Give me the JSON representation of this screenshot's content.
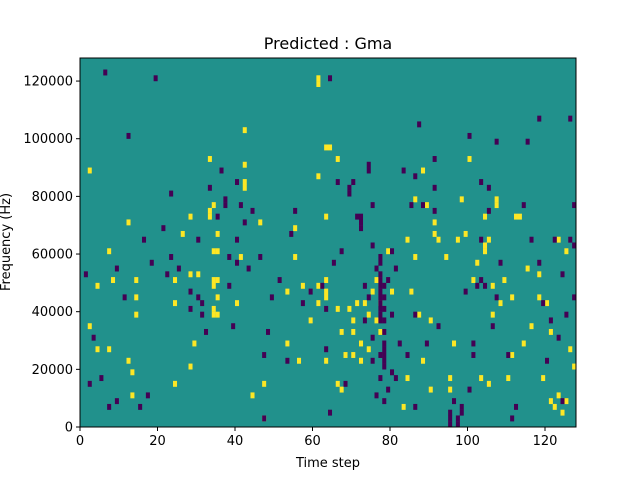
{
  "chart_data": {
    "type": "heatmap",
    "title": "Predicted : Gma",
    "xlabel": "Time step",
    "ylabel": "Frequency (Hz)",
    "xlim": [
      0,
      128
    ],
    "ylim": [
      0,
      128000
    ],
    "xticks": [
      0,
      20,
      40,
      60,
      80,
      100,
      120
    ],
    "yticks": [
      0,
      20000,
      40000,
      60000,
      80000,
      100000,
      120000
    ],
    "grid": false,
    "colormap": "viridis",
    "colors": {
      "background": "#21918c",
      "high": "#fde725",
      "low": "#440154"
    },
    "rows": 64,
    "cols": 128,
    "high_cells": [
      [
        2,
        17
      ],
      [
        2,
        44
      ],
      [
        4,
        13
      ],
      [
        4,
        24
      ],
      [
        7,
        13
      ],
      [
        7,
        30
      ],
      [
        8,
        25
      ],
      [
        12,
        11
      ],
      [
        12,
        35
      ],
      [
        13,
        5
      ],
      [
        13,
        9
      ],
      [
        14,
        19
      ],
      [
        14,
        22
      ],
      [
        14,
        25
      ],
      [
        24,
        7
      ],
      [
        24,
        21
      ],
      [
        24,
        25
      ],
      [
        26,
        33
      ],
      [
        28,
        10
      ],
      [
        28,
        26
      ],
      [
        28,
        36
      ],
      [
        29,
        14
      ],
      [
        30,
        26
      ],
      [
        33,
        36
      ],
      [
        33,
        37
      ],
      [
        33,
        46
      ],
      [
        34,
        19
      ],
      [
        34,
        20
      ],
      [
        34,
        24
      ],
      [
        34,
        25
      ],
      [
        34,
        30
      ],
      [
        34,
        38
      ],
      [
        35,
        19
      ],
      [
        35,
        22
      ],
      [
        35,
        25
      ],
      [
        35,
        30
      ],
      [
        35,
        33
      ],
      [
        40,
        21
      ],
      [
        41,
        29
      ],
      [
        42,
        41
      ],
      [
        42,
        42
      ],
      [
        42,
        45
      ],
      [
        42,
        51
      ],
      [
        44,
        5
      ],
      [
        46,
        35
      ],
      [
        47,
        1
      ],
      [
        47,
        7
      ],
      [
        53,
        14
      ],
      [
        53,
        23
      ],
      [
        55,
        29
      ],
      [
        55,
        34
      ],
      [
        56,
        11
      ],
      [
        57,
        24
      ],
      [
        59,
        18
      ],
      [
        61,
        21
      ],
      [
        61,
        24
      ],
      [
        61,
        43
      ],
      [
        61,
        59
      ],
      [
        61,
        60
      ],
      [
        63,
        11
      ],
      [
        63,
        22
      ],
      [
        63,
        23
      ],
      [
        63,
        25
      ],
      [
        63,
        36
      ],
      [
        63,
        48
      ],
      [
        64,
        48
      ],
      [
        66,
        7
      ],
      [
        66,
        20
      ],
      [
        66,
        46
      ],
      [
        67,
        6
      ],
      [
        67,
        16
      ],
      [
        68,
        12
      ],
      [
        69,
        20
      ],
      [
        70,
        12
      ],
      [
        70,
        16
      ],
      [
        70,
        18
      ],
      [
        71,
        21
      ],
      [
        72,
        11
      ],
      [
        72,
        14
      ],
      [
        73,
        21
      ],
      [
        74,
        13
      ],
      [
        74,
        19
      ],
      [
        75,
        23
      ],
      [
        76,
        18
      ],
      [
        76,
        25
      ],
      [
        77,
        16
      ],
      [
        77,
        21
      ],
      [
        79,
        30
      ],
      [
        80,
        23
      ],
      [
        83,
        3
      ],
      [
        84,
        8
      ],
      [
        84,
        32
      ],
      [
        85,
        23
      ],
      [
        86,
        29
      ],
      [
        86,
        39
      ],
      [
        87,
        19
      ],
      [
        88,
        11
      ],
      [
        88,
        44
      ],
      [
        89,
        38
      ],
      [
        90,
        6
      ],
      [
        90,
        18
      ],
      [
        91,
        33
      ],
      [
        91,
        35
      ],
      [
        92,
        32
      ],
      [
        94,
        29
      ],
      [
        95,
        6
      ],
      [
        95,
        8
      ],
      [
        96,
        14
      ],
      [
        97,
        32
      ],
      [
        98,
        39
      ],
      [
        99,
        33
      ],
      [
        100,
        46
      ],
      [
        101,
        25
      ],
      [
        102,
        28
      ],
      [
        103,
        8
      ],
      [
        104,
        30
      ],
      [
        104,
        31
      ],
      [
        104,
        36
      ],
      [
        105,
        7
      ],
      [
        105,
        32
      ],
      [
        106,
        19
      ],
      [
        106,
        24
      ],
      [
        107,
        38
      ],
      [
        107,
        39
      ],
      [
        108,
        21
      ],
      [
        109,
        25
      ],
      [
        110,
        8
      ],
      [
        111,
        12
      ],
      [
        111,
        22
      ],
      [
        112,
        36
      ],
      [
        113,
        36
      ],
      [
        114,
        14
      ],
      [
        115,
        27
      ],
      [
        116,
        17
      ],
      [
        118,
        22
      ],
      [
        118,
        26
      ],
      [
        119,
        8
      ],
      [
        120,
        21
      ],
      [
        121,
        4
      ],
      [
        121,
        16
      ],
      [
        122,
        3
      ],
      [
        123,
        5
      ],
      [
        123,
        32
      ],
      [
        124,
        2
      ],
      [
        125,
        4
      ],
      [
        125,
        30
      ],
      [
        126,
        13
      ],
      [
        127,
        10
      ]
    ],
    "low_cells": [
      [
        1,
        26
      ],
      [
        2,
        7
      ],
      [
        3,
        15
      ],
      [
        5,
        8
      ],
      [
        6,
        61
      ],
      [
        7,
        3
      ],
      [
        9,
        4
      ],
      [
        9,
        27
      ],
      [
        11,
        22
      ],
      [
        12,
        50
      ],
      [
        15,
        3
      ],
      [
        16,
        32
      ],
      [
        17,
        5
      ],
      [
        18,
        28
      ],
      [
        19,
        60
      ],
      [
        21,
        34
      ],
      [
        22,
        26
      ],
      [
        23,
        29
      ],
      [
        23,
        40
      ],
      [
        25,
        27
      ],
      [
        28,
        20
      ],
      [
        28,
        23
      ],
      [
        30,
        22
      ],
      [
        30,
        32
      ],
      [
        31,
        19
      ],
      [
        31,
        21
      ],
      [
        32,
        16
      ],
      [
        33,
        41
      ],
      [
        35,
        36
      ],
      [
        36,
        44
      ],
      [
        37,
        38
      ],
      [
        37,
        39
      ],
      [
        38,
        24
      ],
      [
        38,
        29
      ],
      [
        39,
        17
      ],
      [
        40,
        28
      ],
      [
        40,
        32
      ],
      [
        40,
        42
      ],
      [
        41,
        38
      ],
      [
        42,
        35
      ],
      [
        43,
        27
      ],
      [
        44,
        37
      ],
      [
        46,
        29
      ],
      [
        47,
        1
      ],
      [
        47,
        12
      ],
      [
        48,
        16
      ],
      [
        49,
        22
      ],
      [
        51,
        25
      ],
      [
        53,
        11
      ],
      [
        54,
        33
      ],
      [
        55,
        37
      ],
      [
        57,
        21
      ],
      [
        59,
        23
      ],
      [
        62,
        24
      ],
      [
        63,
        13
      ],
      [
        63,
        20
      ],
      [
        64,
        2
      ],
      [
        64,
        60
      ],
      [
        65,
        28
      ],
      [
        66,
        42
      ],
      [
        67,
        30
      ],
      [
        68,
        7
      ],
      [
        69,
        40
      ],
      [
        69,
        41
      ],
      [
        70,
        42
      ],
      [
        71,
        36
      ],
      [
        72,
        34
      ],
      [
        72,
        35
      ],
      [
        72,
        36
      ],
      [
        73,
        18
      ],
      [
        73,
        24
      ],
      [
        74,
        22
      ],
      [
        74,
        44
      ],
      [
        74,
        45
      ],
      [
        75,
        11
      ],
      [
        75,
        15
      ],
      [
        75,
        31
      ],
      [
        75,
        38
      ],
      [
        76,
        5
      ],
      [
        76,
        27
      ],
      [
        77,
        8
      ],
      [
        77,
        12
      ],
      [
        77,
        18
      ],
      [
        77,
        19
      ],
      [
        77,
        20
      ],
      [
        77,
        21
      ],
      [
        77,
        22
      ],
      [
        77,
        23
      ],
      [
        77,
        24
      ],
      [
        77,
        25
      ],
      [
        77,
        26
      ],
      [
        77,
        28
      ],
      [
        77,
        29
      ],
      [
        78,
        4
      ],
      [
        78,
        10
      ],
      [
        78,
        11
      ],
      [
        78,
        12
      ],
      [
        78,
        13
      ],
      [
        78,
        14
      ],
      [
        78,
        16
      ],
      [
        78,
        18
      ],
      [
        78,
        20
      ],
      [
        78,
        22
      ],
      [
        78,
        24
      ],
      [
        79,
        6
      ],
      [
        79,
        25
      ],
      [
        80,
        9
      ],
      [
        80,
        19
      ],
      [
        80,
        30
      ],
      [
        81,
        8
      ],
      [
        81,
        27
      ],
      [
        82,
        14
      ],
      [
        83,
        44
      ],
      [
        84,
        12
      ],
      [
        85,
        38
      ],
      [
        86,
        3
      ],
      [
        86,
        19
      ],
      [
        86,
        43
      ],
      [
        87,
        52
      ],
      [
        88,
        38
      ],
      [
        89,
        14
      ],
      [
        91,
        37
      ],
      [
        91,
        41
      ],
      [
        91,
        46
      ],
      [
        92,
        17
      ],
      [
        95,
        0
      ],
      [
        95,
        1
      ],
      [
        95,
        2
      ],
      [
        96,
        4
      ],
      [
        97,
        0
      ],
      [
        97,
        1
      ],
      [
        98,
        2
      ],
      [
        98,
        3
      ],
      [
        99,
        23
      ],
      [
        100,
        6
      ],
      [
        100,
        50
      ],
      [
        101,
        12
      ],
      [
        101,
        14
      ],
      [
        102,
        24
      ],
      [
        103,
        25
      ],
      [
        103,
        32
      ],
      [
        103,
        42
      ],
      [
        104,
        24
      ],
      [
        105,
        37
      ],
      [
        105,
        41
      ],
      [
        106,
        17
      ],
      [
        107,
        22
      ],
      [
        107,
        49
      ],
      [
        108,
        28
      ],
      [
        110,
        12
      ],
      [
        111,
        1
      ],
      [
        112,
        3
      ],
      [
        114,
        38
      ],
      [
        115,
        49
      ],
      [
        116,
        32
      ],
      [
        118,
        28
      ],
      [
        118,
        53
      ],
      [
        119,
        21
      ],
      [
        120,
        11
      ],
      [
        121,
        18
      ],
      [
        122,
        32
      ],
      [
        123,
        15
      ],
      [
        124,
        4
      ],
      [
        124,
        26
      ],
      [
        125,
        19
      ],
      [
        126,
        32
      ],
      [
        126,
        53
      ],
      [
        127,
        22
      ],
      [
        127,
        31
      ],
      [
        127,
        38
      ]
    ]
  }
}
